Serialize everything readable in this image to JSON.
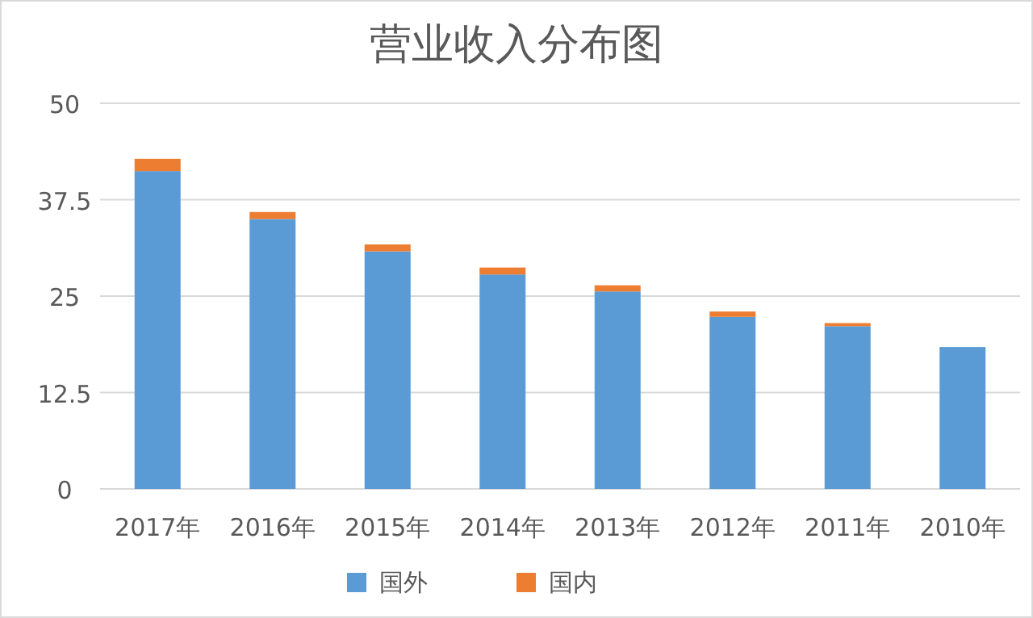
{
  "chart_data": {
    "type": "bar",
    "title": "营业收入分布图",
    "stacked": true,
    "categories": [
      "2017年",
      "2016年",
      "2015年",
      "2014年",
      "2013年",
      "2012年",
      "2011年",
      "2010年"
    ],
    "series": [
      {
        "name": "国外",
        "color": "#5b9bd5",
        "values": [
          41.2,
          35.0,
          30.8,
          27.8,
          25.6,
          22.3,
          21.1,
          18.4
        ]
      },
      {
        "name": "国内",
        "color": "#ed7d31",
        "values": [
          1.6,
          0.9,
          0.9,
          0.9,
          0.8,
          0.7,
          0.4,
          0
        ]
      }
    ],
    "ylim": [
      0,
      50
    ],
    "yticks": [
      0,
      12.5,
      25,
      37.5,
      50
    ],
    "grid": "y",
    "legend": "bottom"
  }
}
